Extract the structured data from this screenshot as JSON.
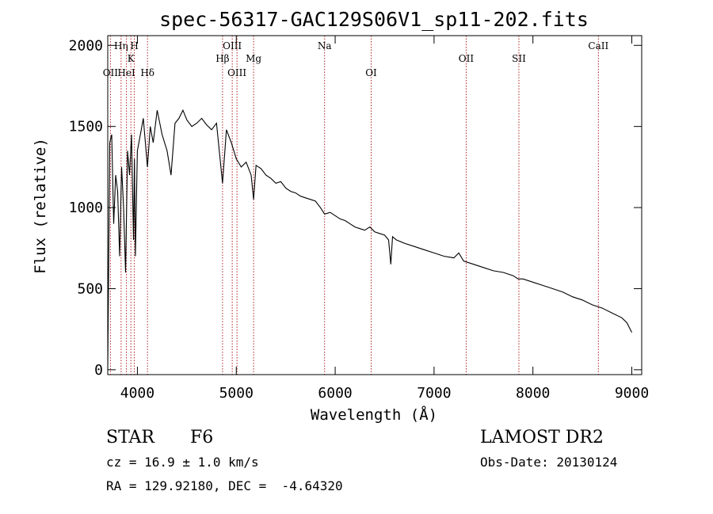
{
  "chart_data": {
    "type": "line",
    "title": "spec-56317-GAC129S06V1_sp11-202.fits",
    "xlabel": "Wavelength (Å)",
    "ylabel": "Flux (relative)",
    "xlim": [
      3700,
      9100
    ],
    "ylim": [
      -30,
      2060
    ],
    "xticks": [
      4000,
      5000,
      6000,
      7000,
      8000,
      9000
    ],
    "yticks": [
      0,
      500,
      1000,
      1500,
      2000
    ],
    "grid": false,
    "series": [
      {
        "x": [
          3700,
          3720,
          3740,
          3760,
          3780,
          3800,
          3820,
          3840,
          3860,
          3880,
          3900,
          3920,
          3940,
          3960,
          3970,
          3980,
          4000,
          4030,
          4060,
          4101,
          4130,
          4160,
          4200,
          4250,
          4300,
          4340,
          4380,
          4420,
          4460,
          4500,
          4550,
          4600,
          4650,
          4700,
          4750,
          4800,
          4861,
          4900,
          4950,
          5000,
          5050,
          5100,
          5150,
          5175,
          5200,
          5250,
          5300,
          5350,
          5400,
          5450,
          5500,
          5550,
          5600,
          5650,
          5700,
          5750,
          5800,
          5850,
          5893,
          5950,
          6000,
          6050,
          6100,
          6150,
          6200,
          6250,
          6300,
          6350,
          6400,
          6450,
          6500,
          6540,
          6563,
          6580,
          6620,
          6700,
          6800,
          6900,
          7000,
          7100,
          7200,
          7250,
          7300,
          7400,
          7500,
          7600,
          7700,
          7800,
          7850,
          7900,
          8000,
          8100,
          8200,
          8300,
          8400,
          8500,
          8600,
          8700,
          8800,
          8900,
          8950,
          9000
        ],
        "values": [
          0,
          1400,
          1450,
          900,
          1200,
          1100,
          700,
          1250,
          1000,
          600,
          1350,
          1200,
          1450,
          800,
          1300,
          700,
          1350,
          1450,
          1550,
          1250,
          1500,
          1400,
          1600,
          1450,
          1350,
          1200,
          1520,
          1550,
          1600,
          1540,
          1500,
          1520,
          1550,
          1510,
          1480,
          1520,
          1150,
          1480,
          1400,
          1300,
          1250,
          1280,
          1200,
          1050,
          1260,
          1240,
          1200,
          1180,
          1150,
          1160,
          1120,
          1100,
          1090,
          1070,
          1060,
          1050,
          1040,
          1000,
          960,
          970,
          950,
          930,
          920,
          900,
          880,
          870,
          860,
          880,
          850,
          840,
          830,
          800,
          650,
          820,
          800,
          780,
          760,
          740,
          720,
          700,
          690,
          720,
          670,
          650,
          630,
          610,
          600,
          580,
          560,
          560,
          540,
          520,
          500,
          480,
          450,
          430,
          400,
          380,
          350,
          320,
          290,
          230
        ]
      }
    ],
    "lines": [
      {
        "label": "OII",
        "x": 3727,
        "row": 3
      },
      {
        "label": "Hη",
        "x": 3835,
        "row": 1
      },
      {
        "label": "HeI",
        "x": 3889,
        "row": 3
      },
      {
        "label": "K",
        "x": 3934,
        "row": 2
      },
      {
        "label": "H",
        "x": 3969,
        "row": 1
      },
      {
        "label": "Hδ",
        "x": 4102,
        "row": 3
      },
      {
        "label": "Hβ",
        "x": 4861,
        "row": 2
      },
      {
        "label": "OIII",
        "x": 4959,
        "row": 1
      },
      {
        "label": "OIII",
        "x": 5007,
        "row": 3
      },
      {
        "label": "Mg",
        "x": 5175,
        "row": 2
      },
      {
        "label": "Na",
        "x": 5893,
        "row": 1
      },
      {
        "label": "OI",
        "x": 6364,
        "row": 3
      },
      {
        "label": "OII",
        "x": 7325,
        "row": 2
      },
      {
        "label": "SII",
        "x": 7858,
        "row": 2
      },
      {
        "label": "CaII",
        "x": 8662,
        "row": 1
      }
    ]
  },
  "info": {
    "object_type": "STAR",
    "subclass": "F6",
    "survey": "LAMOST DR2",
    "cz": "cz = 16.9 ± 1.0 km/s",
    "obs_date": "Obs-Date: 20130124",
    "coords": "RA = 129.92180, DEC =  -4.64320"
  },
  "colors": {
    "spectrum": "#000000",
    "line_markers": "#b22222"
  }
}
